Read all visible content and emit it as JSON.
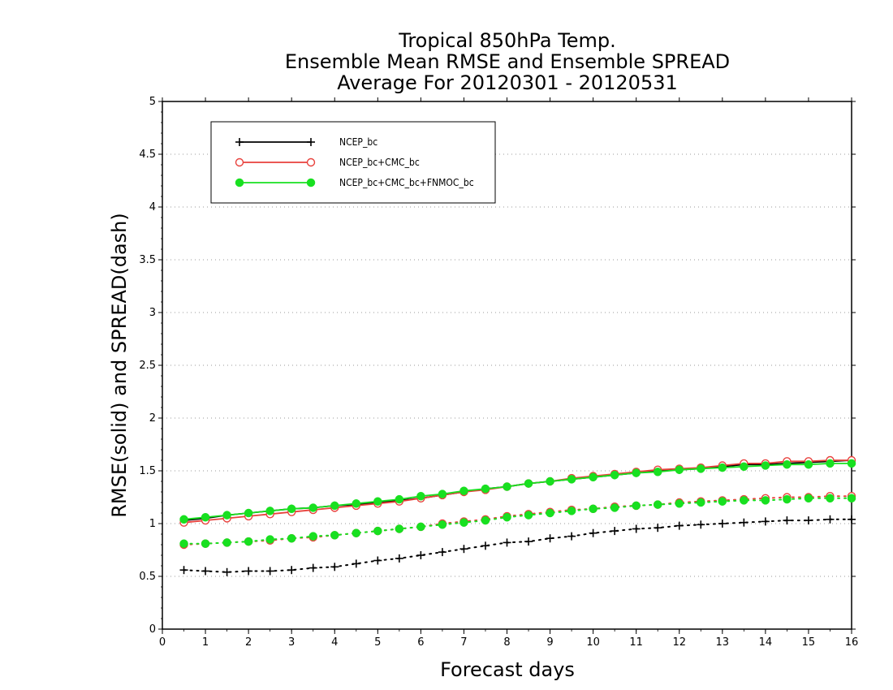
{
  "chart_data": {
    "type": "line",
    "title": [
      "Tropical 850hPa Temp.",
      "Ensemble Mean RMSE and Ensemble SPREAD",
      "Average For 20120301 - 20120531"
    ],
    "xlabel": "Forecast days",
    "ylabel": "RMSE(solid) and SPREAD(dash)",
    "xlim": [
      0,
      16
    ],
    "ylim": [
      0,
      5
    ],
    "xticks": [
      0,
      1,
      2,
      3,
      4,
      5,
      6,
      7,
      8,
      9,
      10,
      11,
      12,
      13,
      14,
      15,
      16
    ],
    "yticks": [
      0,
      0.5,
      1,
      1.5,
      2,
      2.5,
      3,
      3.5,
      4,
      4.5,
      5
    ],
    "grid": "horizontal dotted",
    "legend_position": "top-left",
    "x": [
      0.5,
      1,
      1.5,
      2,
      2.5,
      3,
      3.5,
      4,
      4.5,
      5,
      5.5,
      6,
      6.5,
      7,
      7.5,
      8,
      8.5,
      9,
      9.5,
      10,
      10.5,
      11,
      11.5,
      12,
      12.5,
      13,
      13.5,
      14,
      14.5,
      15,
      15.5,
      16
    ],
    "series": [
      {
        "name": "NCEP_bc",
        "color": "#000000",
        "marker": "plus",
        "rmse": [
          1.03,
          1.05,
          1.08,
          1.1,
          1.12,
          1.14,
          1.15,
          1.17,
          1.18,
          1.2,
          1.22,
          1.24,
          1.27,
          1.3,
          1.33,
          1.35,
          1.38,
          1.4,
          1.42,
          1.44,
          1.46,
          1.48,
          1.5,
          1.51,
          1.52,
          1.54,
          1.56,
          1.56,
          1.57,
          1.58,
          1.59,
          1.6
        ],
        "spread": [
          0.56,
          0.55,
          0.54,
          0.55,
          0.55,
          0.56,
          0.58,
          0.59,
          0.62,
          0.65,
          0.67,
          0.7,
          0.73,
          0.76,
          0.79,
          0.82,
          0.83,
          0.86,
          0.88,
          0.91,
          0.93,
          0.95,
          0.96,
          0.98,
          0.99,
          1.0,
          1.01,
          1.02,
          1.03,
          1.03,
          1.04,
          1.04
        ]
      },
      {
        "name": "NCEP_bc+CMC_bc",
        "color": "#e8413c",
        "marker": "open-circle",
        "rmse": [
          1.01,
          1.03,
          1.05,
          1.07,
          1.09,
          1.11,
          1.13,
          1.15,
          1.17,
          1.19,
          1.21,
          1.24,
          1.27,
          1.3,
          1.32,
          1.35,
          1.38,
          1.4,
          1.43,
          1.45,
          1.47,
          1.49,
          1.51,
          1.52,
          1.53,
          1.55,
          1.57,
          1.57,
          1.59,
          1.59,
          1.6,
          1.6
        ],
        "spread": [
          0.8,
          0.81,
          0.82,
          0.83,
          0.84,
          0.86,
          0.87,
          0.89,
          0.91,
          0.93,
          0.95,
          0.97,
          1.0,
          1.02,
          1.04,
          1.07,
          1.09,
          1.11,
          1.13,
          1.14,
          1.16,
          1.17,
          1.18,
          1.2,
          1.21,
          1.22,
          1.23,
          1.24,
          1.25,
          1.25,
          1.26,
          1.26
        ]
      },
      {
        "name": "NCEP_bc+CMC_bc+FNMOC_bc",
        "color": "#18e020",
        "marker": "filled-circle",
        "rmse": [
          1.04,
          1.06,
          1.08,
          1.1,
          1.12,
          1.14,
          1.15,
          1.17,
          1.19,
          1.21,
          1.23,
          1.26,
          1.28,
          1.31,
          1.33,
          1.35,
          1.38,
          1.4,
          1.42,
          1.44,
          1.46,
          1.48,
          1.49,
          1.51,
          1.52,
          1.53,
          1.54,
          1.55,
          1.56,
          1.56,
          1.57,
          1.57
        ],
        "spread": [
          0.81,
          0.81,
          0.82,
          0.83,
          0.85,
          0.86,
          0.88,
          0.89,
          0.91,
          0.93,
          0.95,
          0.97,
          0.99,
          1.01,
          1.03,
          1.06,
          1.08,
          1.1,
          1.12,
          1.14,
          1.15,
          1.17,
          1.18,
          1.19,
          1.2,
          1.21,
          1.22,
          1.22,
          1.23,
          1.24,
          1.24,
          1.24
        ]
      }
    ]
  }
}
